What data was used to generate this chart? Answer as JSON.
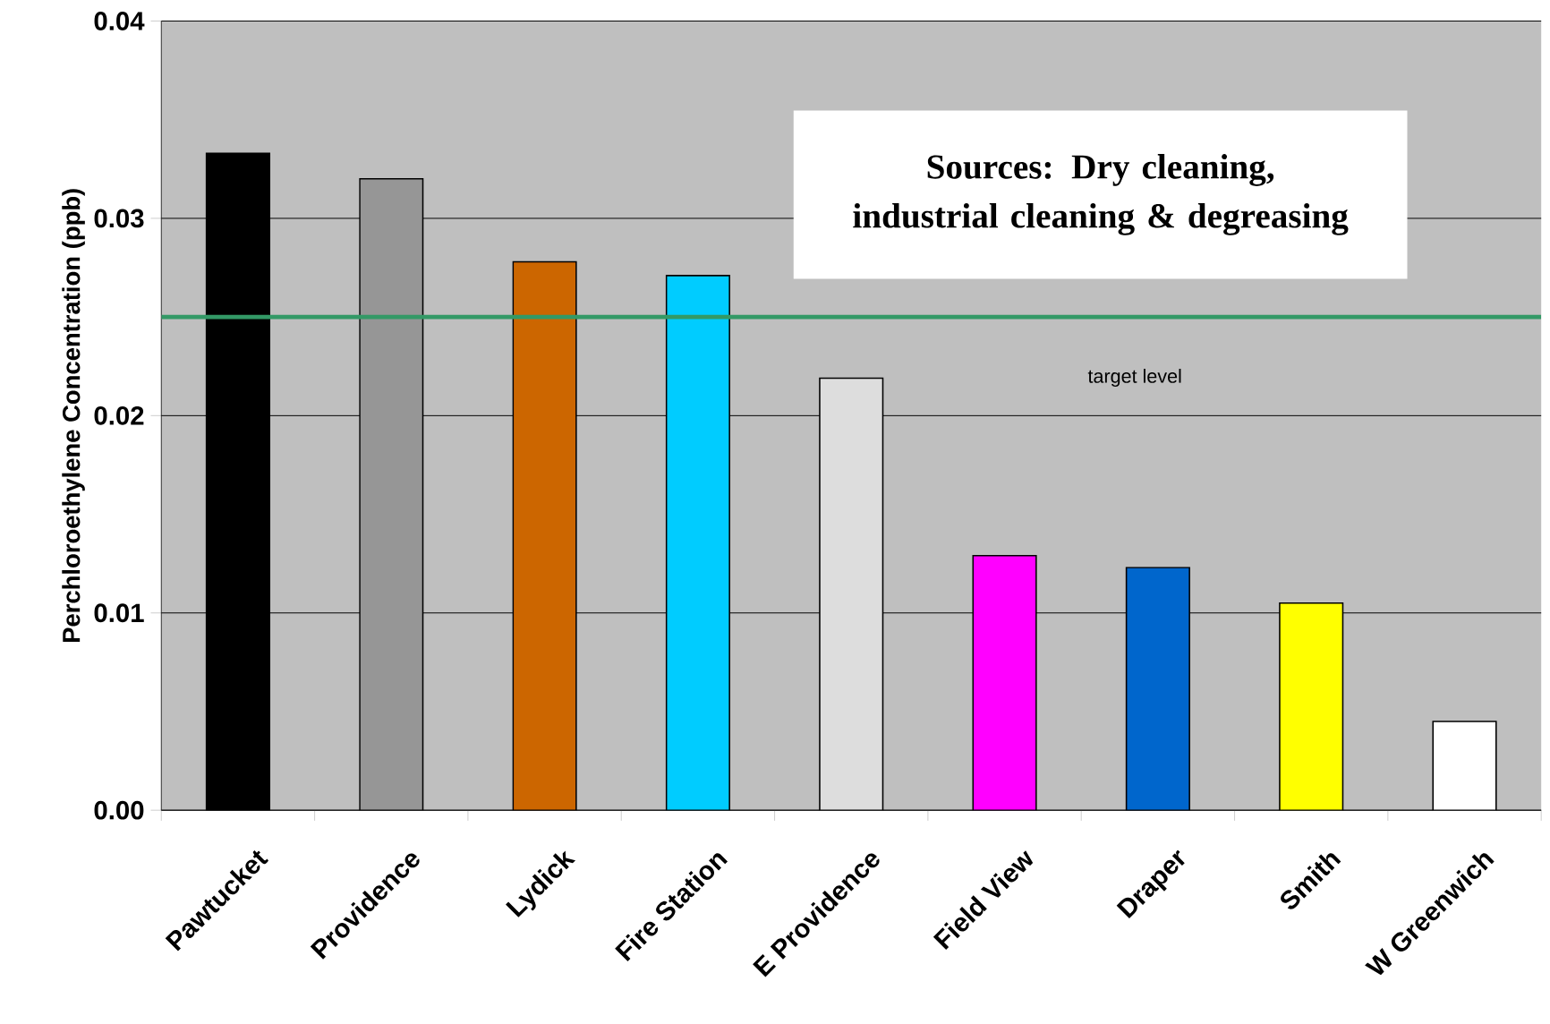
{
  "chart_data": {
    "type": "bar",
    "ylabel": "Perchloroethylene Concentration (ppb)",
    "categories": [
      "Pawtucket",
      "Providence",
      "Lydick",
      "Fire Station",
      "E Providence",
      "Field View",
      "Draper",
      "Smith",
      "W Greenwich"
    ],
    "values": [
      0.0333,
      0.032,
      0.0278,
      0.0271,
      0.0219,
      0.0129,
      0.0123,
      0.0105,
      0.0045
    ],
    "colors": [
      "#000000",
      "#969696",
      "#cc6600",
      "#00ccff",
      "#dddddd",
      "#ff00ff",
      "#0066cc",
      "#ffff00",
      "#ffffff"
    ],
    "ylim": [
      0,
      0.04
    ],
    "yticks": [
      {
        "value": 0,
        "label": "0.00"
      },
      {
        "value": 0.01,
        "label": "0.01"
      },
      {
        "value": 0.02,
        "label": "0.02"
      },
      {
        "value": 0.03,
        "label": "0.03"
      },
      {
        "value": 0.04,
        "label": "0.04"
      }
    ],
    "grid": "y",
    "ref_lines": [
      {
        "axis": "y",
        "value": 0.025,
        "label": "target level",
        "color": "#339966"
      }
    ],
    "annotations": [
      "Sources: Dry cleaning, industrial cleaning & degreasing"
    ]
  }
}
